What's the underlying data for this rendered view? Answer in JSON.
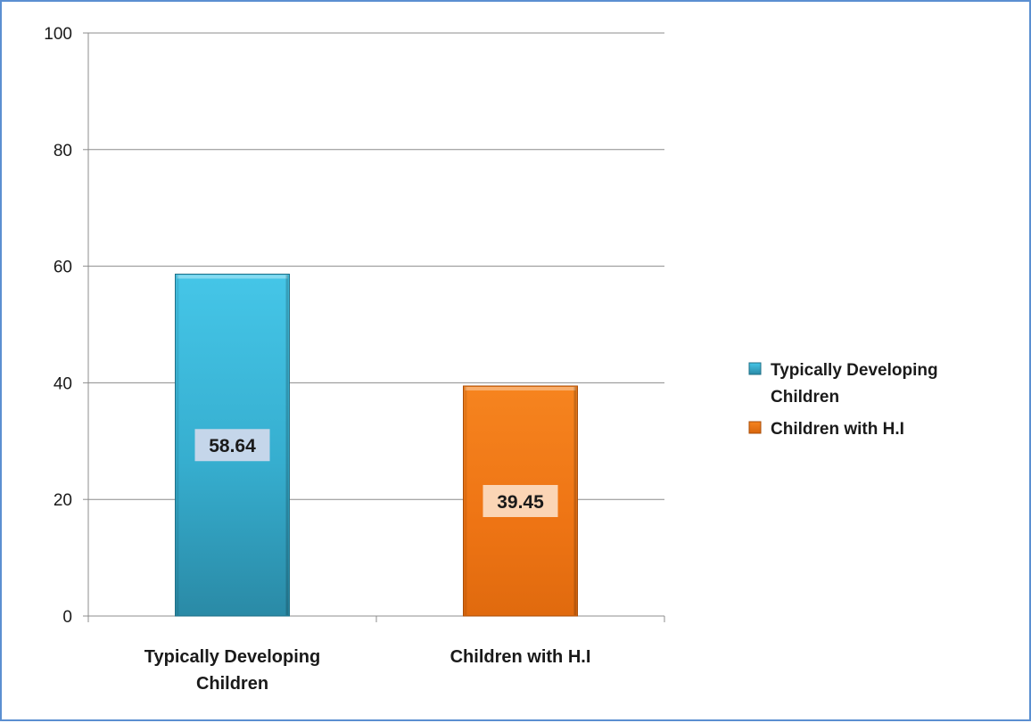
{
  "chart_data": {
    "type": "bar",
    "title": "",
    "xlabel": "",
    "ylabel": "",
    "categories": [
      [
        "Typically Developing",
        "Children"
      ],
      [
        "Children with H.I"
      ]
    ],
    "values": [
      58.64,
      39.45
    ],
    "data_labels": [
      "58.64",
      "39.45"
    ],
    "ylim": [
      0,
      100
    ],
    "yticks": [
      0,
      20,
      40,
      60,
      80,
      100
    ],
    "grid": true,
    "legend": {
      "placement": "right",
      "entries": [
        [
          "Typically Developing",
          "Children"
        ],
        [
          "Children with H.I"
        ]
      ]
    },
    "colors": {
      "series_1": "#3bbde0",
      "series_1_dark": "#1f6f86",
      "series_2": "#f07818",
      "series_2_dark": "#a84d08",
      "frame": "#5b8fd1",
      "gridline": "#8c8c8c",
      "label_bg_1": "#c5d6ea",
      "label_bg_2": "#fbd5b5"
    }
  }
}
